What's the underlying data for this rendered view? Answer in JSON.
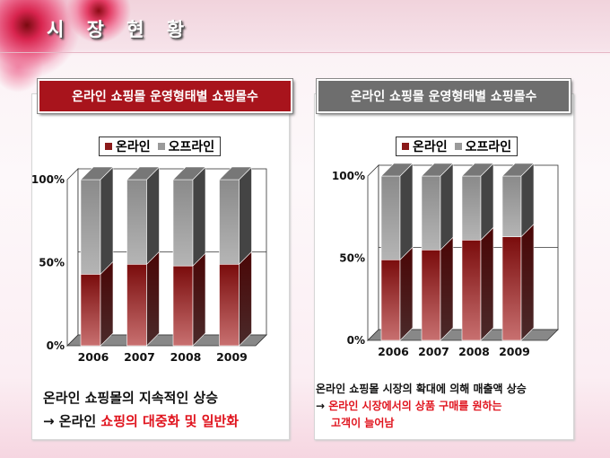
{
  "header": {
    "title": "시 장 현 황"
  },
  "left_panel": {
    "title": "온라인 쇼핑몰 운영형태별 쇼핑몰수",
    "title_color": "#a8141c",
    "note_line1": "온라인 쇼핑몰의 지속적인 상승",
    "note_arrow": "→ 온라인 ",
    "note_red": "쇼핑의 대중화 및 일반화"
  },
  "right_panel": {
    "title": "온라인 쇼핑몰 운영형태별 쇼핑몰수",
    "title_color": "#6e6e6e",
    "note_line1": "온라인 쇼핑몰 시장의 확대에 의해 매출액 상승",
    "note_arrow": "→ ",
    "note_red": "온라인 시장에서의 상품 구매를 원하는",
    "note_red2": "고객이 늘어남"
  },
  "chart_data": [
    {
      "type": "bar",
      "stacked": "percent",
      "categories": [
        "2006",
        "2007",
        "2008",
        "2009"
      ],
      "series": [
        {
          "name": "온라인",
          "values": [
            43,
            49,
            48,
            49
          ],
          "color": "#8b1a1a"
        },
        {
          "name": "오프라인",
          "values": [
            57,
            51,
            52,
            51
          ],
          "color": "#9a9a9a"
        }
      ],
      "yticks": [
        "0%",
        "50%",
        "100%"
      ],
      "ylim": [
        0,
        100
      ],
      "legend": "top",
      "style": "3d"
    },
    {
      "type": "bar",
      "stacked": "percent",
      "categories": [
        "2006",
        "2007",
        "2008",
        "2009"
      ],
      "series": [
        {
          "name": "온라인",
          "values": [
            49,
            55,
            61,
            63
          ],
          "color": "#8b1a1a"
        },
        {
          "name": "오프라인",
          "values": [
            51,
            45,
            39,
            37
          ],
          "color": "#9a9a9a"
        }
      ],
      "yticks": [
        "0%",
        "50%",
        "100%"
      ],
      "ylim": [
        0,
        100
      ],
      "legend": "top",
      "style": "3d"
    }
  ]
}
